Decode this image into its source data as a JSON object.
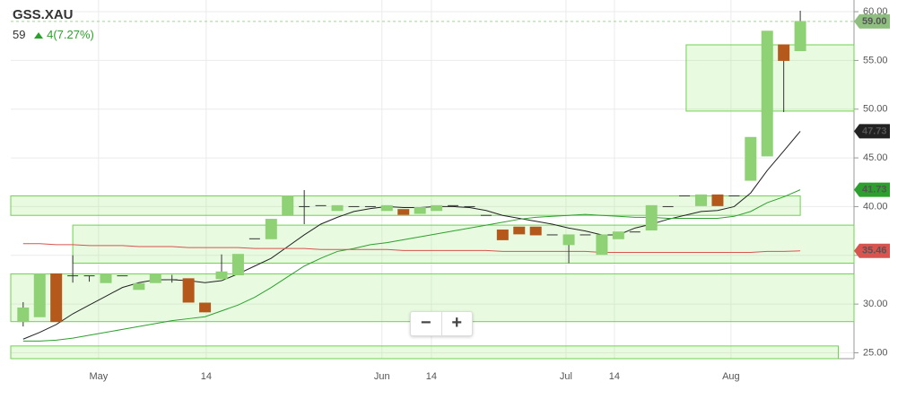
{
  "chart_data": {
    "type": "candlestick",
    "title": "GSS.XAU",
    "last": 59,
    "change": "4(7.27%)",
    "xlim": [
      -0.75,
      50.25
    ],
    "xticks": [
      {
        "value": 4.56,
        "label": "May"
      },
      {
        "value": 11.07,
        "label": "14"
      },
      {
        "value": 21.7,
        "label": "Jun"
      },
      {
        "value": 24.69,
        "label": "14"
      },
      {
        "value": 32.83,
        "label": "Jul"
      },
      {
        "value": 35.76,
        "label": "14"
      },
      {
        "value": 42.81,
        "label": "Aug"
      }
    ],
    "ylim": [
      24.4,
      61.2
    ],
    "yticks": [
      {
        "value": 25,
        "label": "25.00"
      },
      {
        "value": 30,
        "label": "30.00"
      },
      {
        "value": 35,
        "label": "35.00"
      },
      {
        "value": 40,
        "label": "40.00"
      },
      {
        "value": 45,
        "label": "45.00"
      },
      {
        "value": 50,
        "label": "50.00"
      },
      {
        "value": 55,
        "label": "55.00"
      },
      {
        "value": 60,
        "label": "60.00"
      }
    ],
    "grid": true,
    "up_color": "#8fd175",
    "down_color": "#b5581c",
    "last_label": "59.00",
    "last_color": "#8fbf7f",
    "open": [
      28.2,
      28.7,
      33.1,
      32.9,
      32.9,
      32.2,
      32.9,
      31.5,
      32.2,
      32.5,
      32.6,
      30.1,
      32.6,
      33.0,
      36.7,
      36.7,
      39.1,
      40.0,
      40.1,
      39.6,
      40.0,
      40.0,
      39.6,
      39.7,
      39.3,
      39.6,
      40.1,
      40.0,
      39.1,
      37.6,
      37.9,
      37.9,
      37.1,
      36.1,
      37.1,
      35.1,
      36.7,
      37.4,
      37.6,
      40.0,
      41.1,
      40.1,
      41.2,
      41.1,
      42.7,
      45.2,
      56.6,
      56.0
    ],
    "close": [
      29.6,
      33.1,
      28.2,
      32.9,
      32.9,
      33.1,
      32.9,
      32.1,
      33.1,
      32.5,
      30.2,
      29.2,
      33.3,
      35.1,
      36.7,
      38.7,
      41.1,
      40.0,
      40.1,
      40.1,
      40.0,
      40.0,
      40.1,
      39.2,
      39.9,
      40.1,
      40.1,
      40.0,
      39.1,
      36.6,
      37.2,
      37.1,
      37.1,
      37.1,
      37.1,
      37.1,
      37.4,
      37.4,
      40.1,
      40.0,
      41.1,
      41.2,
      40.1,
      41.1,
      47.1,
      58.0,
      55.0,
      59.0
    ],
    "high": [
      30.2,
      33.1,
      33.1,
      35.0,
      32.9,
      33.1,
      32.9,
      32.1,
      33.1,
      33.0,
      32.6,
      30.1,
      35.1,
      35.1,
      36.7,
      38.7,
      41.1,
      41.7,
      40.1,
      40.1,
      40.0,
      40.0,
      40.1,
      39.7,
      39.9,
      40.1,
      40.1,
      40.0,
      39.1,
      37.6,
      37.9,
      37.9,
      37.1,
      37.1,
      37.1,
      37.1,
      37.4,
      37.4,
      40.1,
      40.0,
      41.1,
      41.2,
      41.2,
      41.1,
      47.1,
      58.0,
      56.6,
      60.1
    ],
    "low": [
      27.7,
      28.7,
      28.2,
      32.2,
      32.3,
      32.2,
      32.9,
      31.5,
      32.2,
      32.2,
      30.2,
      29.2,
      32.6,
      33.0,
      36.7,
      36.7,
      39.1,
      38.2,
      40.1,
      39.6,
      40.0,
      40.0,
      39.6,
      39.2,
      39.3,
      39.6,
      40.1,
      40.0,
      39.1,
      36.6,
      37.2,
      37.1,
      37.1,
      34.2,
      37.1,
      35.1,
      36.7,
      37.4,
      37.6,
      40.0,
      41.1,
      40.1,
      40.1,
      41.1,
      42.7,
      45.2,
      49.7,
      56.0
    ],
    "series": [
      {
        "color": "#222222",
        "last_label": "47.73",
        "values": [
          26.4,
          27.1,
          27.9,
          29.0,
          29.9,
          30.8,
          31.7,
          32.2,
          32.5,
          32.5,
          32.4,
          32.2,
          32.4,
          33.1,
          33.9,
          34.7,
          35.9,
          37.1,
          38.2,
          38.9,
          39.5,
          39.8,
          40.0,
          39.9,
          39.9,
          40.0,
          40.0,
          39.9,
          39.6,
          39.1,
          38.8,
          38.5,
          38.2,
          37.8,
          37.5,
          37.1,
          37.1,
          37.8,
          38.2,
          38.7,
          39.1,
          39.5,
          39.6,
          40.0,
          41.4,
          43.7,
          45.7,
          47.73
        ]
      },
      {
        "color": "#2ca02c",
        "last_label": "41.73",
        "values": [
          26.2,
          26.2,
          26.3,
          26.5,
          26.8,
          27.1,
          27.4,
          27.7,
          28.0,
          28.3,
          28.5,
          28.7,
          29.3,
          29.9,
          30.7,
          31.7,
          32.8,
          33.9,
          34.7,
          35.4,
          35.7,
          36.1,
          36.3,
          36.6,
          36.9,
          37.2,
          37.5,
          37.8,
          38.1,
          38.4,
          38.7,
          38.9,
          39.0,
          39.1,
          39.2,
          39.1,
          39.0,
          38.9,
          38.9,
          38.8,
          38.8,
          38.8,
          38.8,
          39.0,
          39.5,
          40.4,
          41.0,
          41.73
        ]
      },
      {
        "color": "#d9534f",
        "last_label": "35.46",
        "values": [
          36.2,
          36.2,
          36.1,
          36.1,
          36.0,
          36.0,
          36.0,
          35.9,
          35.9,
          35.9,
          35.8,
          35.8,
          35.8,
          35.8,
          35.7,
          35.7,
          35.7,
          35.7,
          35.6,
          35.6,
          35.6,
          35.6,
          35.6,
          35.5,
          35.5,
          35.5,
          35.5,
          35.5,
          35.5,
          35.4,
          35.4,
          35.4,
          35.4,
          35.4,
          35.4,
          35.3,
          35.3,
          35.3,
          35.3,
          35.3,
          35.3,
          35.3,
          35.3,
          35.3,
          35.3,
          35.4,
          35.4,
          35.46
        ]
      }
    ],
    "zones": [
      {
        "low": 24.4,
        "high": 25.7,
        "from": -0.75,
        "to": 49.3
      },
      {
        "low": 28.2,
        "high": 33.1,
        "from": -0.75,
        "to": 50.25
      },
      {
        "low": 34.2,
        "high": 38.1,
        "from": 3,
        "to": 50.25
      },
      {
        "low": 39.1,
        "high": 41.1,
        "from": -0.75,
        "to": 47
      },
      {
        "low": 49.8,
        "high": 56.6,
        "from": 40.1,
        "to": 50.25
      }
    ]
  }
}
